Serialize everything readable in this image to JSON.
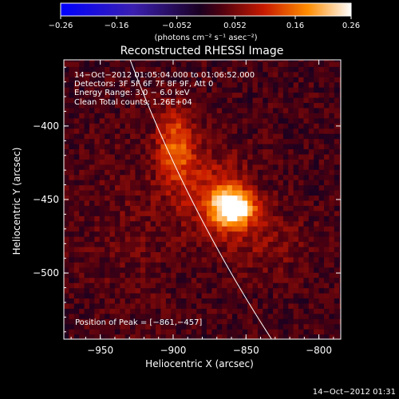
{
  "chart_data": {
    "type": "heatmap",
    "title": "Reconstructed RHESSI Image",
    "xlabel": "Heliocentric X (arcsec)",
    "ylabel": "Heliocentric Y (arcsec)",
    "xlim": [
      -975,
      -785
    ],
    "ylim": [
      -545,
      -355
    ],
    "x_ticks": [
      -950,
      -900,
      -850,
      -800
    ],
    "x_tick_labels": [
      "−950",
      "−900",
      "−850",
      "−800"
    ],
    "y_ticks": [
      -400,
      -450,
      -500
    ],
    "y_tick_labels": [
      "−400",
      "−450",
      "−500"
    ],
    "colorbar": {
      "range": [
        -0.26,
        0.26
      ],
      "ticks": [
        -0.26,
        -0.16,
        -0.052,
        0.052,
        0.16,
        0.26
      ],
      "tick_labels": [
        "−0.26",
        "−0.16",
        "−0.052",
        "0.052",
        "0.16",
        "0.26"
      ],
      "unit_label": "(photons cm⁻² s⁻¹ asec⁻²)"
    },
    "annotations": [
      "14−Oct−2012 01:05:04.000 to 01:06:52.000",
      "Detectors: 3F 5F 6F 7F 8F 9F, Att 0",
      "Energy Range: 3.0 − 6.0 keV",
      "Clean    Total counts: 1.26E+04"
    ],
    "peak_label": "Position of Peak = [−861,−457]",
    "peak": [
      -861,
      -457
    ],
    "sources": [
      {
        "x": -861,
        "y": -457,
        "sx": 10,
        "sy": 9,
        "amp": 0.27
      },
      {
        "x": -875,
        "y": -445,
        "sx": 18,
        "sy": 20,
        "amp": 0.07
      },
      {
        "x": -900,
        "y": -415,
        "sx": 9,
        "sy": 18,
        "amp": 0.12
      },
      {
        "x": -840,
        "y": -480,
        "sx": 22,
        "sy": 16,
        "amp": 0.04
      },
      {
        "x": -930,
        "y": -470,
        "sx": 25,
        "sy": 40,
        "amp": 0.02
      }
    ],
    "limb_arc": {
      "center": [
        0,
        0
      ],
      "radius": 995,
      "y_range": [
        -545,
        -355
      ]
    },
    "grid": false
  },
  "footer_timestamp": "14−Oct−2012 01:31"
}
